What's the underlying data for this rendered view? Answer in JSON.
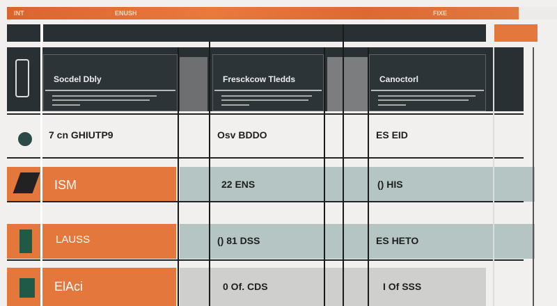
{
  "header": {
    "labels": [
      "INT",
      "ENUSH",
      "FIXE"
    ]
  },
  "cards": [
    {
      "title": "Socdel Dbly"
    },
    {
      "title": "Fresckcow Tledds"
    },
    {
      "title": "Canoctorl"
    }
  ],
  "rows": [
    {
      "label": "7 cn GHIUTP9",
      "col2": "Osv BDDO",
      "col3": "ES EID"
    },
    {
      "label": "ISM",
      "col2": "22 ENS",
      "col3": "() HIS"
    },
    {
      "label": "LAUSS",
      "col2": "() 81 DSS",
      "col3": "ES HETO"
    },
    {
      "label": "ElAci",
      "col2": "0 Of. CDS",
      "col3": "I Of SSS"
    }
  ],
  "colors": {
    "accent": "#e4773b",
    "dark": "#293033",
    "teal": "#b5c5c3"
  }
}
